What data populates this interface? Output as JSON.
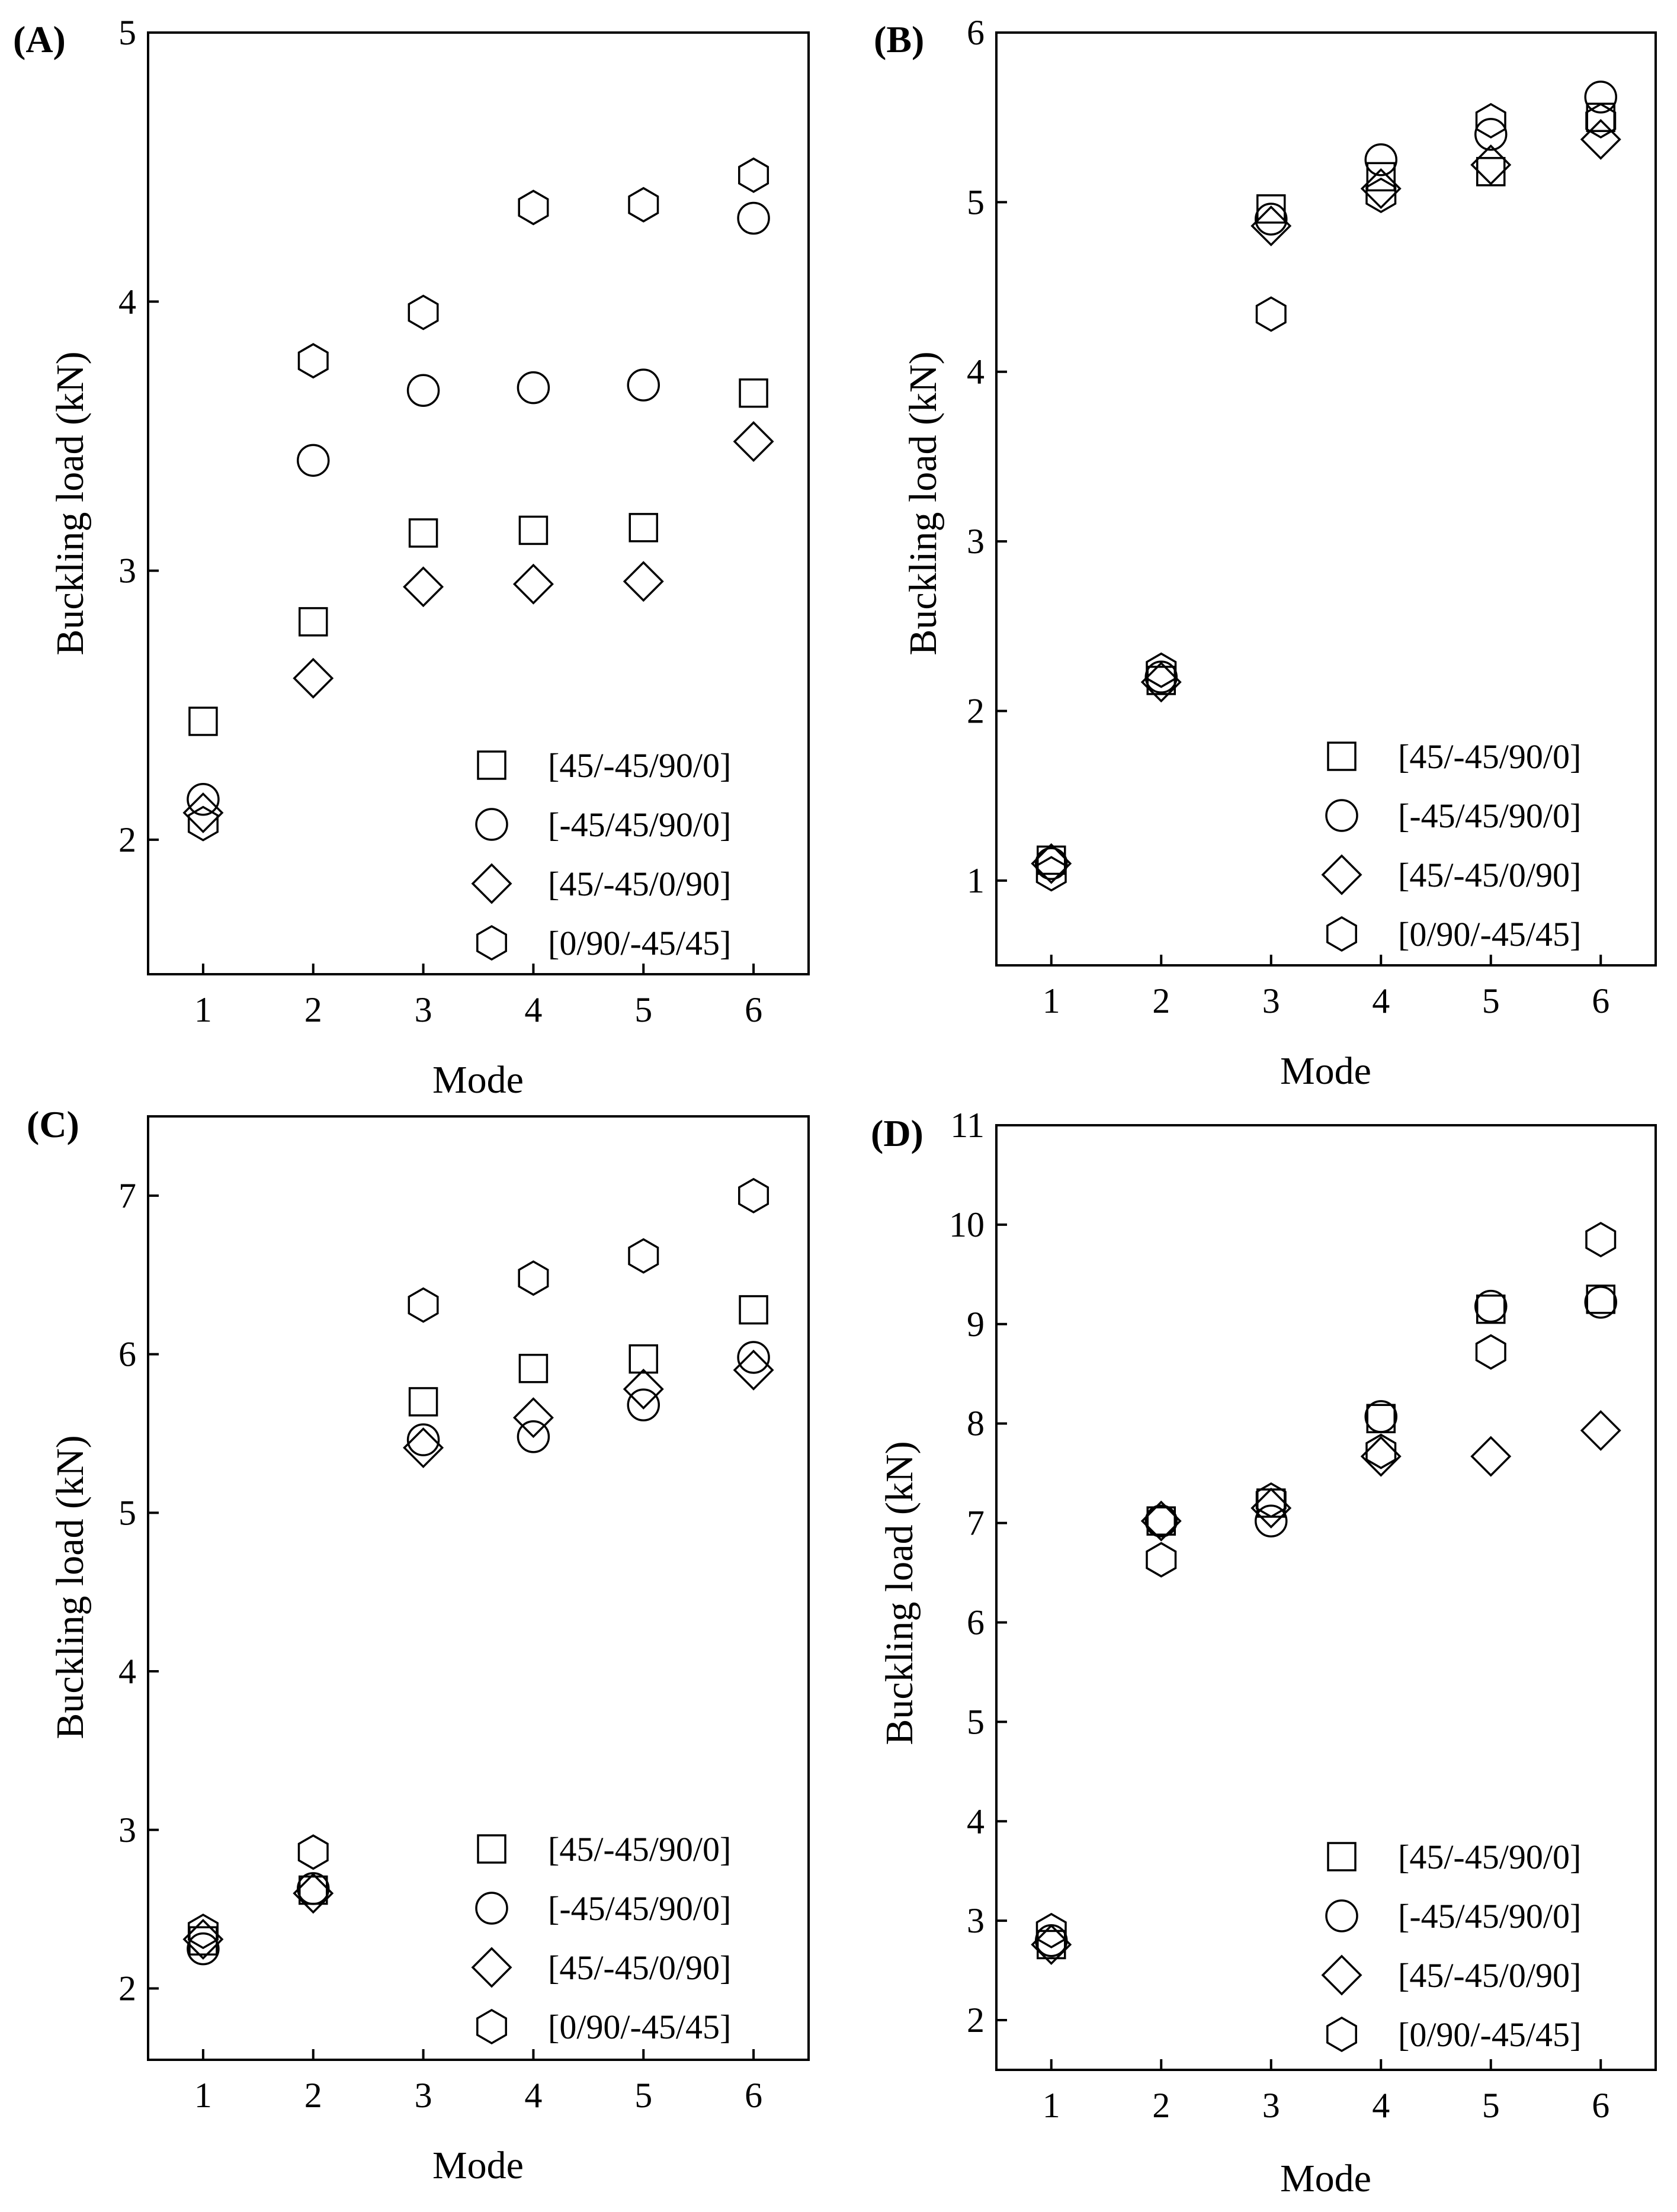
{
  "figure": {
    "xlabel": "Mode",
    "ylabel": "Buckling load (kN)"
  },
  "legend": [
    {
      "name": "[45/-45/90/0]",
      "marker": "square"
    },
    {
      "name": "[-45/45/90/0]",
      "marker": "circle"
    },
    {
      "name": "[45/-45/0/90]",
      "marker": "diamond"
    },
    {
      "name": "[0/90/-45/45]",
      "marker": "hexagon"
    }
  ],
  "chart_data": [
    {
      "type": "scatter",
      "panel": "(A)",
      "xlabel": "Mode",
      "ylabel": "Buckling load (kN)",
      "x": [
        1,
        2,
        3,
        4,
        5,
        6
      ],
      "xlim": [
        0.5,
        6.5
      ],
      "ylim": [
        1.5,
        5
      ],
      "yticks": [
        2,
        3,
        4,
        5
      ],
      "series": [
        {
          "name": "[45/-45/90/0]",
          "marker": "square",
          "values": [
            2.44,
            2.81,
            3.14,
            3.15,
            3.16,
            3.66
          ]
        },
        {
          "name": "[-45/45/90/0]",
          "marker": "circle",
          "values": [
            2.15,
            3.41,
            3.67,
            3.68,
            3.69,
            4.31
          ]
        },
        {
          "name": "[45/-45/0/90]",
          "marker": "diamond",
          "values": [
            2.1,
            2.6,
            2.94,
            2.95,
            2.96,
            3.48
          ]
        },
        {
          "name": "[0/90/-45/45]",
          "marker": "hexagon",
          "values": [
            2.06,
            3.78,
            3.96,
            4.35,
            4.36,
            4.47
          ]
        }
      ]
    },
    {
      "type": "scatter",
      "panel": "(B)",
      "xlabel": "Mode",
      "ylabel": "Buckling load (kN)",
      "x": [
        1,
        2,
        3,
        4,
        5,
        6
      ],
      "xlim": [
        0.5,
        6.5
      ],
      "ylim": [
        0.5,
        6
      ],
      "yticks": [
        1,
        2,
        3,
        4,
        5,
        6
      ],
      "series": [
        {
          "name": "[45/-45/90/0]",
          "marker": "square",
          "values": [
            1.12,
            2.18,
            4.96,
            5.15,
            5.18,
            5.5
          ]
        },
        {
          "name": "[-45/45/90/0]",
          "marker": "circle",
          "values": [
            1.1,
            2.2,
            4.9,
            5.25,
            5.4,
            5.62
          ]
        },
        {
          "name": "[45/-45/0/90]",
          "marker": "diamond",
          "values": [
            1.1,
            2.17,
            4.86,
            5.08,
            5.22,
            5.37
          ]
        },
        {
          "name": "[0/90/-45/45]",
          "marker": "hexagon",
          "values": [
            1.04,
            2.24,
            4.34,
            5.04,
            5.48,
            5.48
          ]
        }
      ]
    },
    {
      "type": "scatter",
      "panel": "(C)",
      "xlabel": "Mode",
      "ylabel": "Buckling load (kN)",
      "x": [
        1,
        2,
        3,
        4,
        5,
        6
      ],
      "xlim": [
        0.5,
        6.5
      ],
      "ylim": [
        1.55,
        7.5
      ],
      "yticks": [
        2,
        3,
        4,
        5,
        6,
        7
      ],
      "series": [
        {
          "name": "[45/-45/90/0]",
          "marker": "square",
          "values": [
            2.3,
            2.62,
            5.7,
            5.91,
            5.97,
            6.28
          ]
        },
        {
          "name": "[-45/45/90/0]",
          "marker": "circle",
          "values": [
            2.25,
            2.63,
            5.46,
            5.48,
            5.68,
            5.98
          ]
        },
        {
          "name": "[45/-45/0/90]",
          "marker": "diamond",
          "values": [
            2.31,
            2.6,
            5.41,
            5.6,
            5.78,
            5.9
          ]
        },
        {
          "name": "[0/90/-45/45]",
          "marker": "hexagon",
          "values": [
            2.36,
            2.86,
            6.31,
            6.48,
            6.62,
            7.0
          ]
        }
      ]
    },
    {
      "type": "scatter",
      "panel": "(D)",
      "xlabel": "Mode",
      "ylabel": "Buckling load (kN)",
      "x": [
        1,
        2,
        3,
        4,
        5,
        6
      ],
      "xlim": [
        0.5,
        6.5
      ],
      "ylim": [
        1.5,
        11
      ],
      "yticks": [
        2,
        3,
        4,
        5,
        6,
        7,
        8,
        9,
        10,
        11
      ],
      "series": [
        {
          "name": "[45/-45/90/0]",
          "marker": "square",
          "values": [
            2.76,
            7.02,
            7.2,
            8.05,
            9.15,
            9.25
          ]
        },
        {
          "name": "[-45/45/90/0]",
          "marker": "circle",
          "values": [
            2.8,
            7.02,
            7.02,
            8.07,
            9.18,
            9.22
          ]
        },
        {
          "name": "[45/-45/0/90]",
          "marker": "diamond",
          "values": [
            2.76,
            7.02,
            7.15,
            7.67,
            7.67,
            7.93
          ]
        },
        {
          "name": "[0/90/-45/45]",
          "marker": "hexagon",
          "values": [
            2.9,
            6.63,
            7.23,
            7.72,
            8.72,
            9.85
          ]
        }
      ]
    }
  ]
}
